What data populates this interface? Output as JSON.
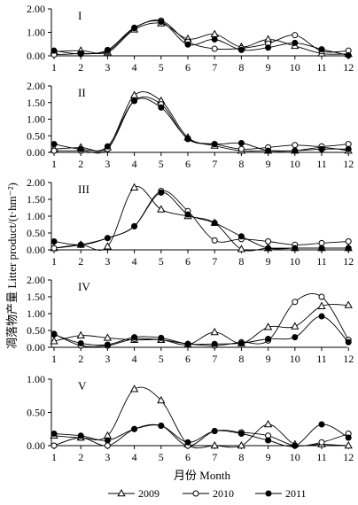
{
  "ylabel": "凋落物产量 Litter product/(t·hm⁻²)",
  "xlabel": "月份 Month",
  "legend": [
    {
      "name": "2009",
      "marker": "triangle"
    },
    {
      "name": "2010",
      "marker": "circle-open"
    },
    {
      "name": "2011",
      "marker": "circle-filled"
    }
  ],
  "chart_data": [
    {
      "type": "line",
      "panel": "I",
      "x": [
        1,
        2,
        3,
        4,
        5,
        6,
        7,
        8,
        9,
        10,
        11,
        12
      ],
      "ylim": [
        0,
        2
      ],
      "yticks": [
        "0.00",
        "1.00",
        "2.00"
      ],
      "series": [
        {
          "name": "2009",
          "values": [
            0.18,
            0.22,
            0.15,
            1.12,
            1.38,
            0.72,
            0.92,
            0.38,
            0.7,
            0.42,
            0.1,
            0.08
          ]
        },
        {
          "name": "2010",
          "values": [
            0.05,
            0.1,
            0.2,
            1.18,
            1.5,
            0.6,
            0.3,
            0.32,
            0.52,
            0.88,
            0.2,
            0.22
          ]
        },
        {
          "name": "2011",
          "values": [
            0.22,
            0.08,
            0.25,
            1.2,
            1.45,
            0.48,
            0.7,
            0.25,
            0.35,
            0.55,
            0.28,
            0.02
          ]
        }
      ]
    },
    {
      "type": "line",
      "panel": "II",
      "x": [
        1,
        2,
        3,
        4,
        5,
        6,
        7,
        8,
        9,
        10,
        11,
        12
      ],
      "ylim": [
        0,
        2
      ],
      "yticks": [
        "0.00",
        "0.50",
        "1.00",
        "1.50",
        "2.00"
      ],
      "series": [
        {
          "name": "2009",
          "values": [
            0.1,
            0.15,
            0.15,
            1.72,
            1.55,
            0.45,
            0.2,
            0.05,
            0.05,
            0.05,
            0.15,
            0.05
          ]
        },
        {
          "name": "2010",
          "values": [
            0.05,
            0.05,
            0.1,
            1.55,
            1.45,
            0.4,
            0.25,
            0.1,
            0.15,
            0.22,
            0.18,
            0.25
          ]
        },
        {
          "name": "2011",
          "values": [
            0.25,
            0.1,
            0.18,
            1.55,
            1.35,
            0.42,
            0.25,
            0.28,
            0.05,
            0.05,
            0.1,
            0.1
          ]
        }
      ]
    },
    {
      "type": "line",
      "panel": "III",
      "x": [
        1,
        2,
        3,
        4,
        5,
        6,
        7,
        8,
        9,
        10,
        11,
        12
      ],
      "ylim": [
        0,
        2
      ],
      "yticks": [
        "0.00",
        "0.50",
        "1.00",
        "1.50",
        "2.00"
      ],
      "series": [
        {
          "name": "2009",
          "values": [
            0.05,
            0.15,
            0.1,
            1.85,
            1.2,
            1.0,
            0.8,
            0.02,
            0.05,
            0.05,
            0.05,
            0.05
          ]
        },
        {
          "name": "2010",
          "values": [
            0.05,
            0.15,
            0.35,
            0.7,
            1.75,
            1.15,
            0.28,
            0.32,
            0.25,
            0.15,
            0.2,
            0.25
          ]
        },
        {
          "name": "2011",
          "values": [
            0.25,
            0.15,
            0.35,
            0.7,
            1.7,
            1.05,
            0.8,
            0.4,
            0.05,
            0.05,
            0.05,
            0.05
          ]
        }
      ]
    },
    {
      "type": "line",
      "panel": "IV",
      "x": [
        1,
        2,
        3,
        4,
        5,
        6,
        7,
        8,
        9,
        10,
        11,
        12
      ],
      "ylim": [
        0,
        2
      ],
      "yticks": [
        "0.00",
        "0.50",
        "1.00",
        "1.50",
        "2.00"
      ],
      "series": [
        {
          "name": "2009",
          "values": [
            0.18,
            0.35,
            0.28,
            0.22,
            0.22,
            0.08,
            0.45,
            0.12,
            0.6,
            0.62,
            1.22,
            1.25
          ]
        },
        {
          "name": "2010",
          "values": [
            0.4,
            0.05,
            0.05,
            0.25,
            0.22,
            0.1,
            0.05,
            0.15,
            0.2,
            1.35,
            1.5,
            0.22
          ]
        },
        {
          "name": "2011",
          "values": [
            0.38,
            0.12,
            0.08,
            0.3,
            0.28,
            0.1,
            0.1,
            0.12,
            0.25,
            0.3,
            0.92,
            0.15
          ]
        }
      ]
    },
    {
      "type": "line",
      "panel": "V",
      "x": [
        1,
        2,
        3,
        4,
        5,
        6,
        7,
        8,
        9,
        10,
        11,
        12
      ],
      "ylim": [
        0,
        1
      ],
      "yticks": [
        "0.00",
        "0.50",
        "1.00"
      ],
      "series": [
        {
          "name": "2009",
          "values": [
            0.15,
            0.12,
            0.15,
            0.85,
            0.68,
            0.02,
            0.0,
            0.0,
            0.32,
            0.02,
            0.02,
            0.0
          ]
        },
        {
          "name": "2010",
          "values": [
            0.0,
            0.12,
            0.0,
            0.25,
            0.3,
            0.0,
            0.22,
            0.2,
            0.15,
            0.0,
            0.05,
            0.18
          ]
        },
        {
          "name": "2011",
          "values": [
            0.18,
            0.15,
            0.08,
            0.25,
            0.3,
            0.05,
            0.22,
            0.18,
            0.08,
            0.0,
            0.32,
            0.12
          ]
        }
      ]
    }
  ]
}
